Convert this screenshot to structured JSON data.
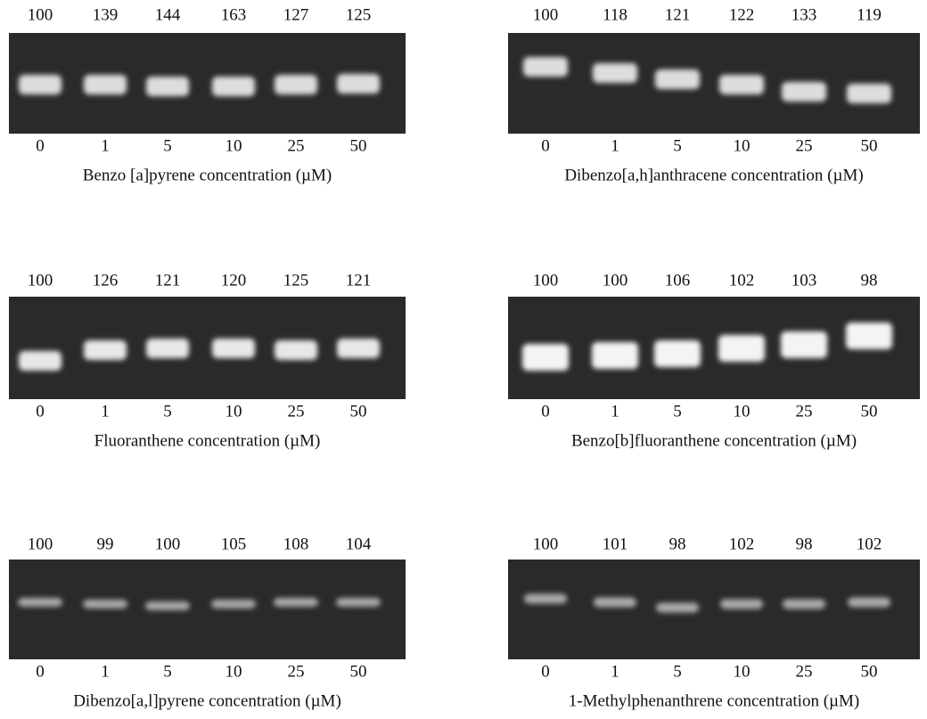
{
  "panels": [
    {
      "values": [
        100,
        139,
        144,
        163,
        127,
        125
      ],
      "concentrations": [
        0,
        1,
        5,
        10,
        25,
        50
      ],
      "label": "Benzo [a]pyrene concentration (µM)"
    },
    {
      "values": [
        100,
        118,
        121,
        122,
        133,
        119
      ],
      "concentrations": [
        0,
        1,
        5,
        10,
        25,
        50
      ],
      "label": "Dibenzo[a,h]anthracene concentration (µM)"
    },
    {
      "values": [
        100,
        126,
        121,
        120,
        125,
        121
      ],
      "concentrations": [
        0,
        1,
        5,
        10,
        25,
        50
      ],
      "label": "Fluoranthene concentration (µM)"
    },
    {
      "values": [
        100,
        100,
        106,
        102,
        103,
        98
      ],
      "concentrations": [
        0,
        1,
        5,
        10,
        25,
        50
      ],
      "label": "Benzo[b]fluoranthene concentration (µM)"
    },
    {
      "values": [
        100,
        99,
        100,
        105,
        108,
        104
      ],
      "concentrations": [
        0,
        1,
        5,
        10,
        25,
        50
      ],
      "label": "Dibenzo[a,l]pyrene concentration (µM)"
    },
    {
      "values": [
        100,
        101,
        98,
        102,
        98,
        102
      ],
      "concentrations": [
        0,
        1,
        5,
        10,
        25,
        50
      ],
      "label": "1-Methylphenanthrene concentration (µM)"
    }
  ]
}
